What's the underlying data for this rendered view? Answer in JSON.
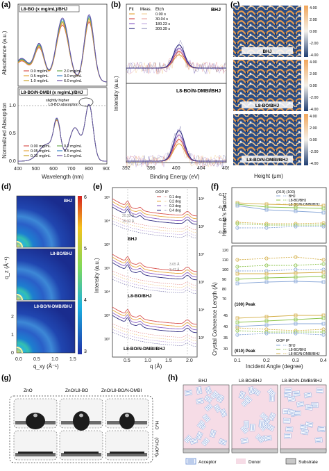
{
  "panels": {
    "a": {
      "label": "(a)",
      "top_tag": "L8-BO (x mg/mL)/BHJ",
      "bottom_tag": "L8-BO/N-DMBI (x mg/mL)/BHJ",
      "ylabel_top": "Absorbance (a.u.)",
      "ylabel_bottom": "Normalized Absorption",
      "xlabel": "Wavelength (nm)",
      "xticks": [
        "400",
        "500",
        "600",
        "700",
        "800",
        "900"
      ],
      "ytick_1": "1.0",
      "ytick_05": "0.5",
      "ytick_0": "0.0",
      "annotation": "slightly higher\nL8-BO absorption",
      "legend_top": [
        {
          "name": "0.0 mg/mL",
          "color": "#d9534f"
        },
        {
          "name": "0.5 mg/mL",
          "color": "#e6a640"
        },
        {
          "name": "1.0 mg/mL",
          "color": "#c9a227"
        },
        {
          "name": "2.0 mg/mL",
          "color": "#6aa84f"
        },
        {
          "name": "3.0 mg/mL",
          "color": "#3d85c6"
        },
        {
          "name": "6.0 mg/mL",
          "color": "#674ea7"
        }
      ],
      "legend_bottom": [
        {
          "name": "0.00 mg/mL",
          "color": "#d9534f"
        },
        {
          "name": "0.05 mg/mL",
          "color": "#e6a640"
        },
        {
          "name": "0.10 mg/mL",
          "color": "#c9a227"
        },
        {
          "name": "0.2 mg/mL",
          "color": "#6aa84f"
        },
        {
          "name": "0.5 mg/mL",
          "color": "#3d85c6"
        },
        {
          "name": "1.0 mg/mL",
          "color": "#674ea7"
        }
      ]
    },
    "b": {
      "label": "(b)",
      "legend_header": [
        "Fit",
        "Meas.",
        "Etch"
      ],
      "legend": [
        {
          "name": "0.00 s",
          "color": "#e6a640"
        },
        {
          "name": "30.04 s",
          "color": "#d9534f"
        },
        {
          "name": "180.23 s",
          "color": "#8e63c7"
        },
        {
          "name": "300.39 s",
          "color": "#2e2a80"
        }
      ],
      "top_tag": "BHJ",
      "bottom_tag": "L8-BO/N-DMBI/BHJ",
      "ylabel": "Intensity (a.u.)",
      "xlabel": "Binding Energy (eV)",
      "xticks": [
        "392",
        "396",
        "400",
        "404",
        "408"
      ]
    },
    "c": {
      "label": "(c)",
      "tags": [
        "BHJ",
        "L8-BO/BHJ",
        "L8-BO/N-DMBI/BHJ"
      ],
      "colorbar_ticks": [
        "4.00",
        "2.00",
        "0.00",
        "-2.00",
        "-4.00"
      ],
      "xlabel": "Height (μm)"
    },
    "d": {
      "label": "(d)",
      "tags": [
        "BHJ",
        "L8-BO/BHJ",
        "L8-BO/N-DMBI/BHJ"
      ],
      "ylabel": "q_z (Å⁻¹)",
      "xlabel": "q_xy (Å⁻¹)",
      "yticks": [
        "2",
        "1",
        "0"
      ],
      "xticks": [
        "0.0",
        "0.5",
        "1.0",
        "1.5"
      ],
      "colorbar_ticks": [
        "6",
        "5",
        "4",
        "3"
      ]
    },
    "e": {
      "label": "(e)",
      "legend_header": [
        "OOP",
        "IP"
      ],
      "legend": [
        "0.1 deg",
        "0.2 deg",
        "0.3 deg",
        "0.4 deg"
      ],
      "legend_colors": [
        "#d9534f",
        "#e6a640",
        "#8e63c7",
        "#2e2a80"
      ],
      "tags": [
        "BHJ",
        "L8-BO/BHJ",
        "L8-BO/N-DMBI/BHJ"
      ],
      "annotations": [
        "20.32 Å",
        "19.32 Å",
        "3.65 Å",
        "3.47 Å"
      ],
      "ylabel": "Intensity (a.u.)",
      "xlabel": "q (Å)",
      "xticks": [
        "0.5",
        "1.0",
        "1.5",
        "2.0"
      ],
      "right_ticks": [
        "10⁴",
        "10³",
        "10⁴",
        "10³",
        "10⁴",
        "10³"
      ],
      "left_ticks": [
        "10⁵",
        "10⁴",
        "10³",
        "10⁵",
        "10⁴",
        "10³",
        "10²"
      ]
    },
    "f": {
      "label": "(f)",
      "ylabel_top": "Herman's Factor",
      "ylabel_bottom": "Crystal Coherence Length (Å)",
      "xlabel": "Incident Angle (degree)",
      "top_header": "(010) (100)",
      "legend_names": [
        "BHJ",
        "L8-BO/BHJ",
        "L8-BO/N-DMBI/BHJ"
      ],
      "legend_header_bottom": [
        "OOP",
        "IP"
      ],
      "peak_100": "(100) Peak",
      "peak_010": "(010) Peak",
      "xticks": [
        "0.1",
        "0.2",
        "0.3",
        "0.4"
      ],
      "yticks_top": [
        "-0.27",
        "-0.28",
        "-0.29",
        "-0.30"
      ],
      "yticks_mid": [
        "120",
        "110",
        "100",
        "90",
        "80",
        "70"
      ],
      "yticks_bottom": [
        "45",
        "40",
        "35",
        "30"
      ],
      "colors": {
        "bhj": "#8aa8d8",
        "l8": "#8bc34a",
        "ndmbi": "#d4b04a"
      }
    },
    "g": {
      "label": "(g)",
      "col_titles": [
        "ZnO",
        "ZnO/L8-BO",
        "ZnO/L8-BO/N-DMBI"
      ],
      "row_titles": [
        "H₂O",
        "(CH₂OH)₂"
      ]
    },
    "h": {
      "label": "(h)",
      "col_titles": [
        "BHJ",
        "L8-BO/BHJ",
        "L8-BO/N-DMBI/BHJ"
      ],
      "legend": [
        "Acceptor",
        "Donor",
        "Substrate"
      ],
      "colors": {
        "acceptor": "#7a9bd8",
        "donor": "#f6dce6",
        "substrate": "#c8c8c8"
      }
    }
  }
}
